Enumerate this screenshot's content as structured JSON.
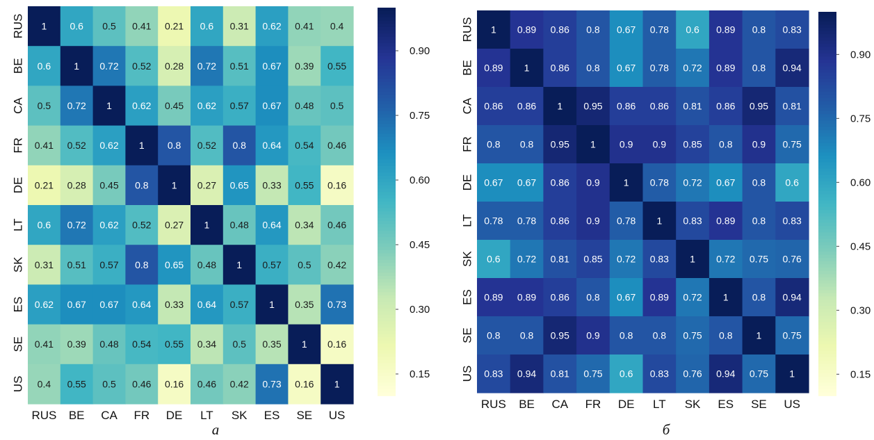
{
  "chart_data": [
    {
      "type": "heatmap",
      "caption": "а",
      "x_labels": [
        "RUS",
        "BE",
        "CA",
        "FR",
        "DE",
        "LT",
        "SK",
        "ES",
        "SE",
        "US"
      ],
      "y_labels": [
        "RUS",
        "BE",
        "CA",
        "FR",
        "DE",
        "LT",
        "SK",
        "ES",
        "SE",
        "US"
      ],
      "values": [
        [
          1,
          0.6,
          0.5,
          0.41,
          0.21,
          0.6,
          0.31,
          0.62,
          0.41,
          0.4
        ],
        [
          0.6,
          1,
          0.72,
          0.52,
          0.28,
          0.72,
          0.51,
          0.67,
          0.39,
          0.55
        ],
        [
          0.5,
          0.72,
          1,
          0.62,
          0.45,
          0.62,
          0.57,
          0.67,
          0.48,
          0.5
        ],
        [
          0.41,
          0.52,
          0.62,
          1,
          0.8,
          0.52,
          0.8,
          0.64,
          0.54,
          0.46
        ],
        [
          0.21,
          0.28,
          0.45,
          0.8,
          1,
          0.27,
          0.65,
          0.33,
          0.55,
          0.16
        ],
        [
          0.6,
          0.72,
          0.62,
          0.52,
          0.27,
          1,
          0.48,
          0.64,
          0.34,
          0.46
        ],
        [
          0.31,
          0.51,
          0.57,
          0.8,
          0.65,
          0.48,
          1,
          0.57,
          0.5,
          0.42
        ],
        [
          0.62,
          0.67,
          0.67,
          0.64,
          0.33,
          0.64,
          0.57,
          1,
          0.35,
          0.73
        ],
        [
          0.41,
          0.39,
          0.48,
          0.54,
          0.55,
          0.34,
          0.5,
          0.35,
          1,
          0.16
        ],
        [
          0.4,
          0.55,
          0.5,
          0.46,
          0.16,
          0.46,
          0.42,
          0.73,
          0.16,
          1
        ]
      ],
      "color_range": [
        0.1,
        1.0
      ],
      "colorbar_ticks": [
        "0.90",
        "0.75",
        "0.60",
        "0.45",
        "0.30",
        "0.15"
      ]
    },
    {
      "type": "heatmap",
      "caption": "б",
      "x_labels": [
        "RUS",
        "BE",
        "CA",
        "FR",
        "DE",
        "LT",
        "SK",
        "ES",
        "SE",
        "US"
      ],
      "y_labels": [
        "RUS",
        "BE",
        "CA",
        "FR",
        "DE",
        "LT",
        "SK",
        "ES",
        "SE",
        "US"
      ],
      "values": [
        [
          1,
          0.89,
          0.86,
          0.8,
          0.67,
          0.78,
          0.6,
          0.89,
          0.8,
          0.83
        ],
        [
          0.89,
          1,
          0.86,
          0.8,
          0.67,
          0.78,
          0.72,
          0.89,
          0.8,
          0.94
        ],
        [
          0.86,
          0.86,
          1,
          0.95,
          0.86,
          0.86,
          0.81,
          0.86,
          0.95,
          0.81
        ],
        [
          0.8,
          0.8,
          0.95,
          1,
          0.9,
          0.9,
          0.85,
          0.8,
          0.9,
          0.75
        ],
        [
          0.67,
          0.67,
          0.86,
          0.9,
          1,
          0.78,
          0.72,
          0.67,
          0.8,
          0.6
        ],
        [
          0.78,
          0.78,
          0.86,
          0.9,
          0.78,
          1,
          0.83,
          0.89,
          0.8,
          0.83
        ],
        [
          0.6,
          0.72,
          0.81,
          0.85,
          0.72,
          0.83,
          1,
          0.72,
          0.75,
          0.76
        ],
        [
          0.89,
          0.89,
          0.86,
          0.8,
          0.67,
          0.89,
          0.72,
          1,
          0.8,
          0.94
        ],
        [
          0.8,
          0.8,
          0.95,
          0.9,
          0.8,
          0.8,
          0.75,
          0.8,
          1,
          0.75
        ],
        [
          0.83,
          0.94,
          0.81,
          0.75,
          0.6,
          0.83,
          0.76,
          0.94,
          0.75,
          1
        ]
      ],
      "color_range": [
        0.1,
        1.0
      ],
      "colorbar_ticks": [
        "0.90",
        "0.75",
        "0.60",
        "0.45",
        "0.30",
        "0.15"
      ]
    }
  ],
  "colormap": {
    "name": "YlGnBu",
    "stops": [
      "#ffffd9",
      "#edf8b1",
      "#c7e9b4",
      "#7fcdbb",
      "#41b6c4",
      "#1d91c0",
      "#225ea8",
      "#253494",
      "#081d58"
    ]
  }
}
